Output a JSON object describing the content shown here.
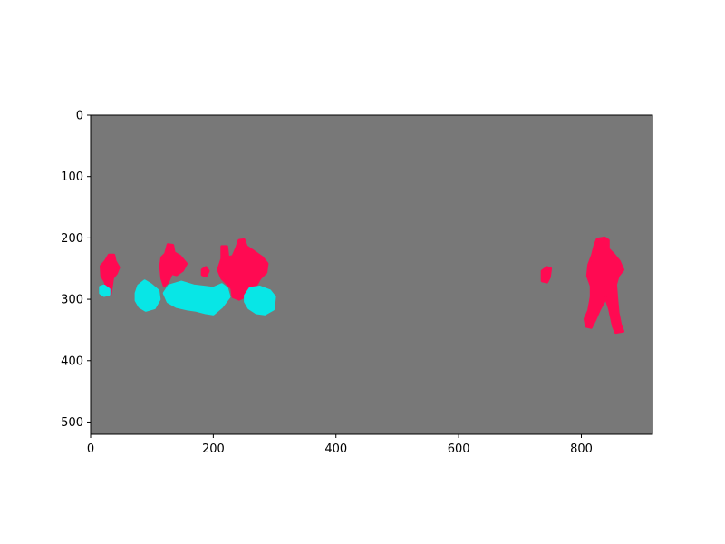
{
  "chart_data": {
    "type": "heatmap",
    "title": "",
    "xlabel": "",
    "ylabel": "",
    "image_size": {
      "width": 916,
      "height": 520
    },
    "xlim": [
      0,
      916
    ],
    "ylim": [
      520,
      0
    ],
    "y_inverted": true,
    "grid": false,
    "legend": "none",
    "x_ticks": [
      0,
      200,
      400,
      600,
      800
    ],
    "x_tick_labels": [
      "0",
      "200",
      "400",
      "600",
      "800"
    ],
    "y_ticks": [
      0,
      100,
      200,
      300,
      400,
      500
    ],
    "y_tick_labels": [
      "0",
      "100",
      "200",
      "300",
      "400",
      "500"
    ],
    "classes": [
      {
        "name": "background",
        "color": "#787878"
      },
      {
        "name": "class-red",
        "color": "#ff0a52"
      },
      {
        "name": "class-cyan",
        "color": "#08e6e6"
      }
    ],
    "regions": [
      {
        "class": "class-red",
        "points": [
          [
            30,
            228
          ],
          [
            38,
            228
          ],
          [
            40,
            238
          ],
          [
            46,
            248
          ],
          [
            42,
            258
          ],
          [
            36,
            265
          ],
          [
            34,
            280
          ],
          [
            32,
            293
          ],
          [
            26,
            292
          ],
          [
            24,
            272
          ],
          [
            18,
            262
          ],
          [
            17,
            246
          ],
          [
            24,
            238
          ]
        ]
      },
      {
        "class": "class-red",
        "points": [
          [
            122,
            226
          ],
          [
            126,
            211
          ],
          [
            134,
            212
          ],
          [
            136,
            224
          ],
          [
            146,
            230
          ],
          [
            156,
            242
          ],
          [
            150,
            253
          ],
          [
            140,
            260
          ],
          [
            132,
            258
          ],
          [
            126,
            272
          ],
          [
            120,
            278
          ],
          [
            116,
            266
          ],
          [
            114,
            246
          ],
          [
            116,
            232
          ]
        ]
      },
      {
        "class": "class-red",
        "points": [
          [
            182,
            252
          ],
          [
            188,
            248
          ],
          [
            192,
            254
          ],
          [
            188,
            262
          ],
          [
            182,
            260
          ]
        ]
      },
      {
        "class": "class-red",
        "points": [
          [
            214,
            234
          ],
          [
            214,
            214
          ],
          [
            222,
            214
          ],
          [
            224,
            232
          ],
          [
            232,
            230
          ],
          [
            238,
            216
          ],
          [
            242,
            204
          ],
          [
            250,
            203
          ],
          [
            254,
            214
          ],
          [
            266,
            222
          ],
          [
            280,
            232
          ],
          [
            288,
            242
          ],
          [
            286,
            256
          ],
          [
            276,
            266
          ],
          [
            268,
            280
          ],
          [
            266,
            300
          ],
          [
            258,
            304
          ],
          [
            250,
            296
          ],
          [
            242,
            300
          ],
          [
            232,
            296
          ],
          [
            230,
            282
          ],
          [
            214,
            266
          ],
          [
            208,
            252
          ]
        ]
      },
      {
        "class": "class-red",
        "points": [
          [
            736,
            254
          ],
          [
            744,
            248
          ],
          [
            750,
            250
          ],
          [
            748,
            264
          ],
          [
            744,
            272
          ],
          [
            736,
            270
          ]
        ]
      },
      {
        "class": "class-red",
        "points": [
          [
            822,
            212
          ],
          [
            826,
            202
          ],
          [
            838,
            200
          ],
          [
            844,
            204
          ],
          [
            844,
            218
          ],
          [
            852,
            226
          ],
          [
            862,
            238
          ],
          [
            868,
            252
          ],
          [
            860,
            262
          ],
          [
            856,
            276
          ],
          [
            858,
            300
          ],
          [
            860,
            322
          ],
          [
            864,
            342
          ],
          [
            868,
            352
          ],
          [
            856,
            354
          ],
          [
            852,
            344
          ],
          [
            846,
            316
          ],
          [
            840,
            298
          ],
          [
            830,
            316
          ],
          [
            822,
            334
          ],
          [
            816,
            346
          ],
          [
            808,
            344
          ],
          [
            806,
            332
          ],
          [
            812,
            318
          ],
          [
            816,
            296
          ],
          [
            816,
            278
          ],
          [
            810,
            262
          ],
          [
            812,
            244
          ],
          [
            818,
            228
          ]
        ]
      },
      {
        "class": "class-cyan",
        "points": [
          [
            16,
            280
          ],
          [
            22,
            278
          ],
          [
            30,
            284
          ],
          [
            30,
            292
          ],
          [
            22,
            294
          ],
          [
            16,
            290
          ]
        ]
      },
      {
        "class": "class-cyan",
        "points": [
          [
            74,
            290
          ],
          [
            78,
            278
          ],
          [
            88,
            270
          ],
          [
            98,
            276
          ],
          [
            110,
            286
          ],
          [
            112,
            300
          ],
          [
            104,
            314
          ],
          [
            90,
            318
          ],
          [
            80,
            312
          ],
          [
            74,
            302
          ]
        ]
      },
      {
        "class": "class-cyan",
        "points": [
          [
            120,
            290
          ],
          [
            128,
            278
          ],
          [
            148,
            272
          ],
          [
            168,
            278
          ],
          [
            184,
            280
          ],
          [
            200,
            282
          ],
          [
            214,
            276
          ],
          [
            222,
            282
          ],
          [
            226,
            296
          ],
          [
            214,
            312
          ],
          [
            200,
            324
          ],
          [
            188,
            322
          ],
          [
            172,
            318
          ],
          [
            158,
            316
          ],
          [
            140,
            312
          ],
          [
            126,
            304
          ]
        ]
      },
      {
        "class": "class-cyan",
        "points": [
          [
            252,
            294
          ],
          [
            260,
            282
          ],
          [
            276,
            280
          ],
          [
            292,
            286
          ],
          [
            300,
            296
          ],
          [
            298,
            316
          ],
          [
            284,
            324
          ],
          [
            270,
            322
          ],
          [
            258,
            314
          ],
          [
            252,
            304
          ]
        ]
      }
    ]
  }
}
